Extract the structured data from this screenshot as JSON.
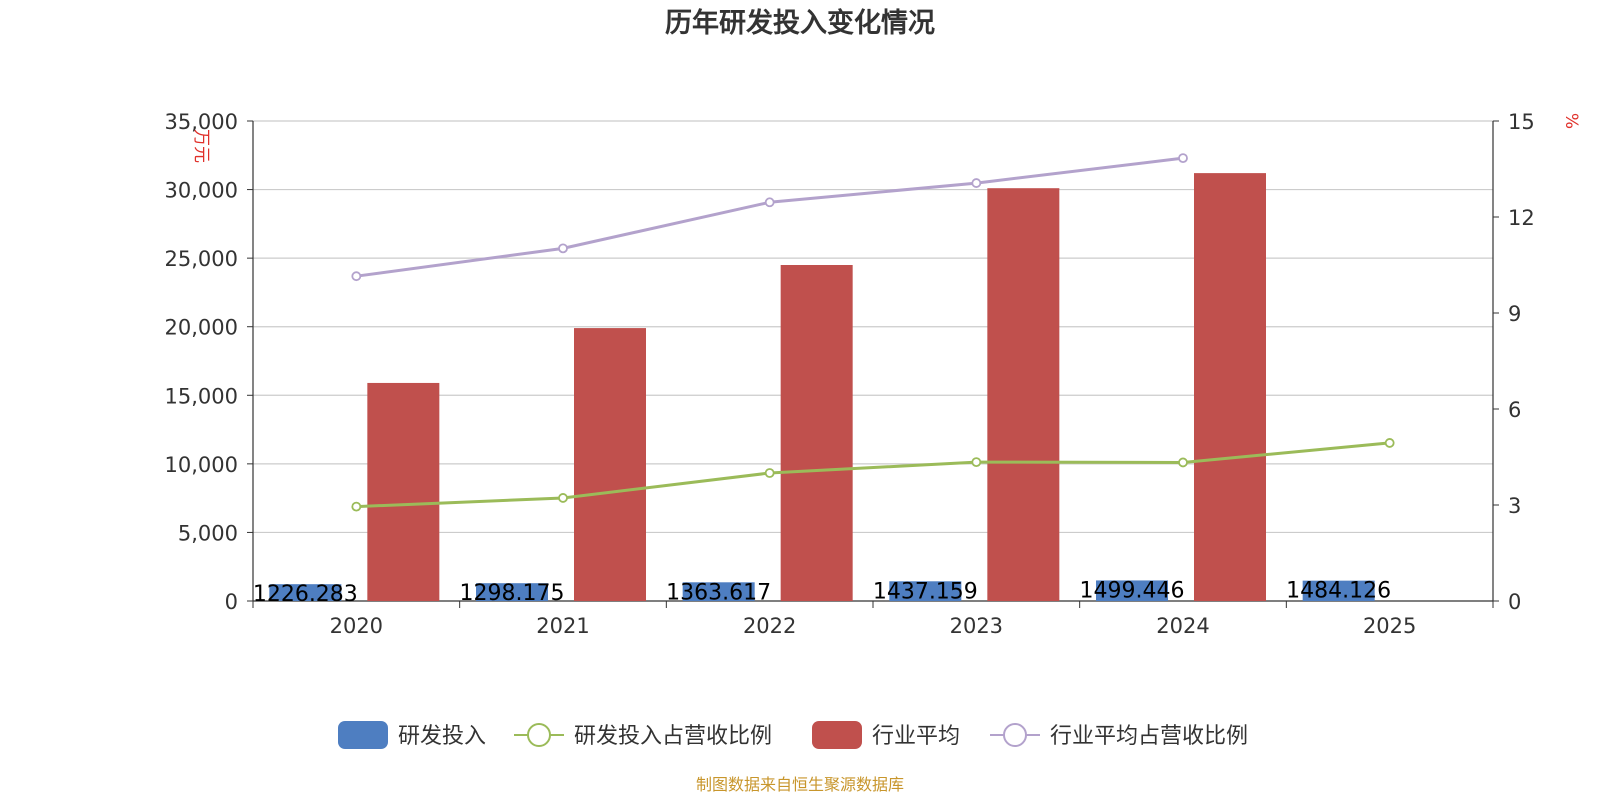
{
  "chart_data": {
    "type": "bar",
    "title": "历年研发投入变化情况",
    "categories": [
      "2020",
      "2021",
      "2022",
      "2023",
      "2024",
      "2025"
    ],
    "y_left": {
      "unit": "万元",
      "ylim": [
        0,
        35000
      ],
      "ticks": [
        "0",
        "5,000",
        "10,000",
        "15,000",
        "20,000",
        "25,000",
        "30,000",
        "35,000"
      ]
    },
    "y_right": {
      "unit": "%",
      "ylim": [
        0,
        15
      ],
      "ticks": [
        "0",
        "3",
        "6",
        "9",
        "12",
        "15"
      ]
    },
    "grid": true,
    "legend_position": "bottom",
    "series": [
      {
        "name": "研发投入",
        "kind": "bar",
        "axis": "left",
        "color": "#4e7ec1",
        "values": [
          1226.283,
          1298.175,
          1363.617,
          1437.159,
          1499.446,
          1484.126
        ],
        "labels": [
          "1226.283",
          "1298.175",
          "1363.617",
          "1437.159",
          "1499.446",
          "1484.126"
        ]
      },
      {
        "name": "研发投入占营收比例",
        "kind": "line",
        "axis": "right",
        "color": "#9bbb59",
        "values": [
          2.95,
          3.22,
          4.0,
          4.34,
          4.33,
          4.94
        ]
      },
      {
        "name": "行业平均",
        "kind": "bar",
        "axis": "left",
        "color": "#c0504d",
        "values": [
          15900,
          19900,
          24500,
          30100,
          31200,
          null
        ]
      },
      {
        "name": "行业平均占营收比例",
        "kind": "line",
        "axis": "right",
        "color": "#b3a2cc",
        "values": [
          10.15,
          11.02,
          12.46,
          13.06,
          13.84,
          null
        ]
      }
    ],
    "source": "制图数据来自恒生聚源数据库"
  }
}
